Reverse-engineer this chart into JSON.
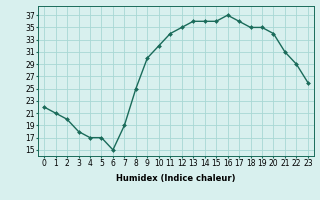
{
  "x": [
    0,
    1,
    2,
    3,
    4,
    5,
    6,
    7,
    8,
    9,
    10,
    11,
    12,
    13,
    14,
    15,
    16,
    17,
    18,
    19,
    20,
    21,
    22,
    23
  ],
  "y": [
    22,
    21,
    20,
    18,
    17,
    17,
    15,
    19,
    25,
    30,
    32,
    34,
    35,
    36,
    36,
    36,
    37,
    36,
    35,
    35,
    34,
    31,
    29,
    26
  ],
  "line_color": "#1a6b5a",
  "marker_color": "#1a6b5a",
  "bg_color": "#d8f0ee",
  "grid_color": "#a8d8d4",
  "xlabel": "Humidex (Indice chaleur)",
  "xlabel_fontsize": 6,
  "ylabel_ticks": [
    15,
    17,
    19,
    21,
    23,
    25,
    27,
    29,
    31,
    33,
    35,
    37
  ],
  "xlim": [
    -0.5,
    23.5
  ],
  "ylim": [
    14,
    38.5
  ],
  "xticks": [
    0,
    1,
    2,
    3,
    4,
    5,
    6,
    7,
    8,
    9,
    10,
    11,
    12,
    13,
    14,
    15,
    16,
    17,
    18,
    19,
    20,
    21,
    22,
    23
  ],
  "tick_fontsize": 5.5,
  "linewidth": 1.0,
  "markersize": 2.0
}
